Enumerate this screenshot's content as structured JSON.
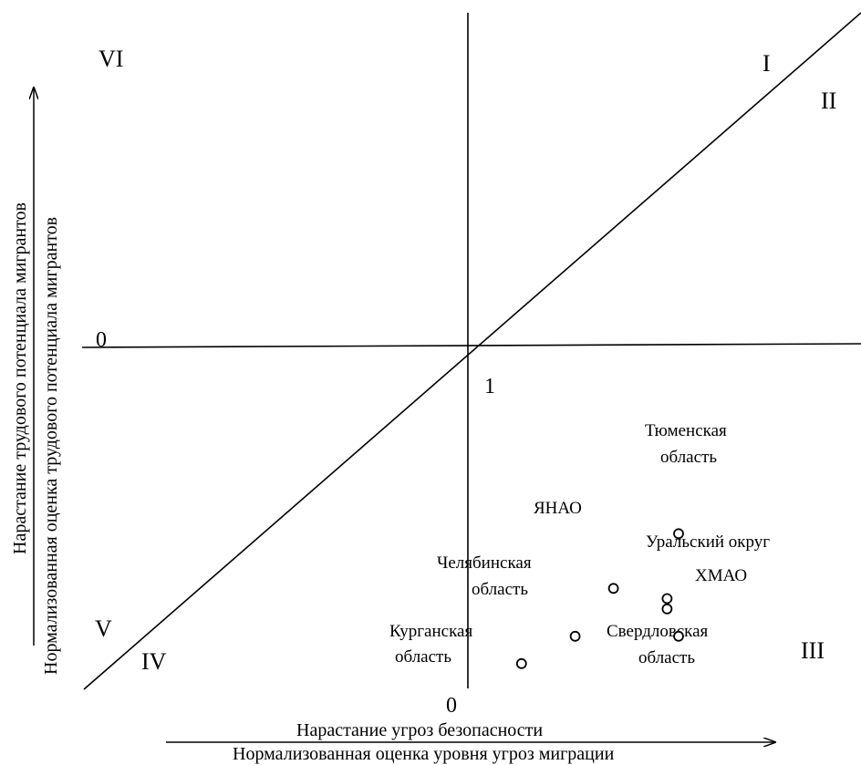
{
  "chart_data": {
    "type": "scatter",
    "title": "",
    "xlabel": "Нормализованная оценка  уровня угроз миграции",
    "xlabel_top": "Нарастание угроз безопасности",
    "ylabel": "Нормализованная оценка  трудового потенциала мигрантов",
    "ylabel_outer": "Нарастание трудового потенциала мигрантов",
    "axis_markers": {
      "x_origin": "0",
      "y_origin": "0",
      "center": "1"
    },
    "zones": [
      "I",
      "II",
      "III",
      "IV",
      "V",
      "VI"
    ],
    "points": [
      {
        "label_lines": [
          "Тюменская",
          "область"
        ],
        "x": 1.55,
        "y": 0.55
      },
      {
        "label_lines": [
          "ЯНАО"
        ],
        "x": 1.38,
        "y": 0.71
      },
      {
        "label_lines": [
          "Уральский округ"
        ],
        "x": 1.52,
        "y": 0.77
      },
      {
        "label_lines": [
          "ХМАО"
        ],
        "x": 1.52,
        "y": 0.74
      },
      {
        "label_lines": [
          "Челябинская",
          "область"
        ],
        "x": 1.28,
        "y": 0.85
      },
      {
        "label_lines": [
          "Свердловская",
          "область"
        ],
        "x": 1.55,
        "y": 0.85
      },
      {
        "label_lines": [
          "Курганская",
          "область"
        ],
        "x": 1.14,
        "y": 0.93
      }
    ]
  }
}
